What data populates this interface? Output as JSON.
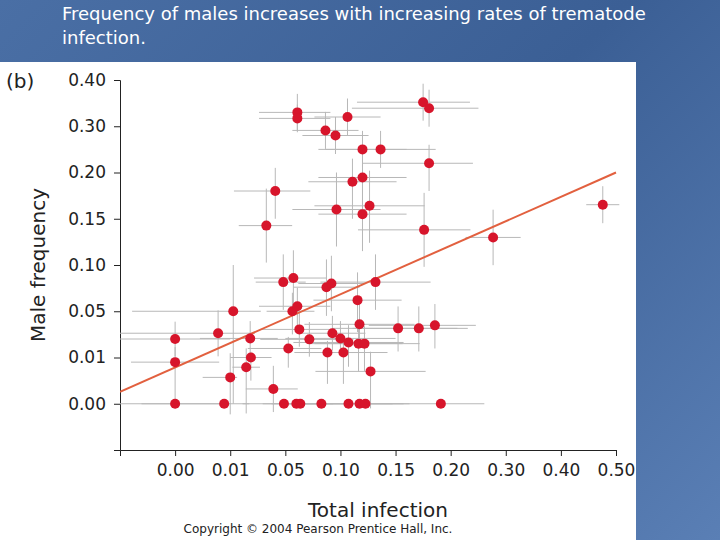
{
  "chart_data": {
    "type": "scatter",
    "title": "Frequency of males increases with increasing rates of trematode infection.",
    "x_label": "Total infection",
    "y_label": "Male frequency",
    "annotations": [
      "(b)",
      "Copyright © 2004 Pearson Prentice Hall, Inc."
    ],
    "xlim": [
      -0.01,
      0.5
    ],
    "ylim": [
      -0.01,
      0.4
    ],
    "xticks": [
      {
        "value": 0,
        "label": "0.00"
      },
      {
        "value": 0.01,
        "label": "0.01"
      },
      {
        "value": 0.05,
        "label": "0.05"
      },
      {
        "value": 0.1,
        "label": "0.10"
      },
      {
        "value": 0.15,
        "label": "0.15"
      },
      {
        "value": 0.2,
        "label": "0.20"
      },
      {
        "value": 0.3,
        "label": "0.30"
      },
      {
        "value": 0.4,
        "label": "0.40"
      },
      {
        "value": 0.5,
        "label": "0.50"
      }
    ],
    "yticks": [
      {
        "value": 0,
        "label": "0.00"
      },
      {
        "value": 0.01,
        "label": "0.01"
      },
      {
        "value": 0.05,
        "label": "0.05"
      },
      {
        "value": 0.1,
        "label": "0.10"
      },
      {
        "value": 0.15,
        "label": "0.15"
      },
      {
        "value": 0.2,
        "label": "0.20"
      },
      {
        "value": 0.3,
        "label": "0.30"
      },
      {
        "value": 0.4,
        "label": "0.40"
      }
    ],
    "grid": false,
    "series": [
      {
        "type": "scatter",
        "color": "#d7152b",
        "marker": "circle",
        "x": [
          0,
          0,
          0,
          0.0078,
          0.0089,
          0.01,
          0.0122,
          0.0216,
          0.0245,
          0.025,
          0.0362,
          0.0413,
          0.0427,
          0.0485,
          0.049,
          0.0527,
          0.0564,
          0.0573,
          0.06,
          0.0609,
          0.0609,
          0.0609,
          0.0627,
          0.0636,
          0.0718,
          0.0827,
          0.0864,
          0.0873,
          0.0882,
          0.0918,
          0.0927,
          0.0955,
          0.0964,
          0.1,
          0.1027,
          0.1064,
          0.1073,
          0.1073,
          0.1109,
          0.1155,
          0.1164,
          0.1173,
          0.1173,
          0.12,
          0.12,
          0.12,
          0.1218,
          0.1227,
          0.1264,
          0.1273,
          0.1318,
          0.1364,
          0.1523,
          0.1711,
          0.175,
          0.1759,
          0.1804,
          0.1804,
          0.1857,
          0.1911,
          0.277,
          0.476
        ],
        "values": [
          0.026,
          0.009,
          0,
          0.031,
          0,
          0.0057,
          0.05,
          0.0079,
          0.0265,
          0.01,
          0.1426,
          0.0032,
          0.18,
          0.0815,
          0,
          0.0178,
          0.05,
          0.0859,
          0,
          0.33,
          0.317,
          0.0554,
          0.0343,
          0,
          0.0257,
          0,
          0.291,
          0.076,
          0.0143,
          0.08,
          0.031,
          0.28,
          0.16,
          0.0265,
          0.0143,
          0.32,
          0.023,
          0,
          0.19,
          0.062,
          0.022,
          0.0387,
          0,
          0.25,
          0.1946,
          0.155,
          0.022,
          0,
          0.164,
          0.007,
          0.0815,
          0.25,
          0.0352,
          0.0352,
          0.352,
          0.138,
          0.339,
          0.22,
          0.0378,
          0,
          0.1298,
          0.1652
        ],
        "x_error": [
          0.01,
          0.008,
          0.01,
          0.02,
          0.015,
          0.005,
          0.02,
          0.01,
          0.02,
          0.015,
          0.02,
          0.02,
          0.03,
          0.02,
          0.03,
          0.03,
          0.02,
          0.03,
          0.02,
          0.03,
          0.03,
          0.03,
          0.03,
          0.03,
          0.04,
          0.03,
          0.03,
          0.03,
          0.03,
          0.03,
          0.03,
          0.03,
          0.04,
          0.05,
          0.04,
          0.03,
          0.05,
          0.04,
          0.04,
          0.04,
          0.04,
          0.05,
          0.04,
          0.04,
          0.04,
          0.04,
          0.05,
          0.04,
          0.05,
          0.05,
          0.05,
          0.05,
          0.06,
          0.06,
          0.06,
          0.06,
          0.07,
          0.06,
          0.06,
          0.07,
          0.05,
          0.03
        ],
        "y_error": [
          0.015,
          0.01,
          0,
          0.02,
          0,
          0.008,
          0.05,
          0.01,
          0.015,
          0.005,
          0.04,
          0.005,
          0.03,
          0.03,
          0,
          0.01,
          0.02,
          0.03,
          0,
          0.04,
          0.03,
          0.02,
          0.015,
          0,
          0.015,
          0,
          0.04,
          0.03,
          0.01,
          0.03,
          0.015,
          0.04,
          0.04,
          0.015,
          0.01,
          0.04,
          0.015,
          0,
          0.04,
          0.03,
          0.015,
          0.02,
          0,
          0.04,
          0.04,
          0.04,
          0.015,
          0,
          0.04,
          0.008,
          0.03,
          0.04,
          0.02,
          0.02,
          0.04,
          0.04,
          0.04,
          0.04,
          0.02,
          0,
          0.03,
          0.02
        ]
      },
      {
        "type": "line",
        "color": "#e2603f",
        "line_style": "solid",
        "x": [
          -0.01,
          0.5
        ],
        "values": [
          0.0026,
          0.2
        ]
      }
    ]
  }
}
